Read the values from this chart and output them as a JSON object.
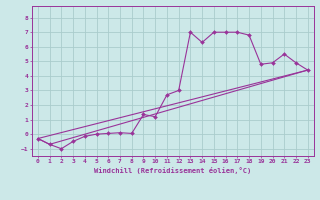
{
  "xlabel": "Windchill (Refroidissement éolien,°C)",
  "bg_color": "#cce8e8",
  "grid_color": "#aacccc",
  "line_color": "#993399",
  "xlim": [
    -0.5,
    23.5
  ],
  "ylim": [
    -1.5,
    8.8
  ],
  "xticks": [
    0,
    1,
    2,
    3,
    4,
    5,
    6,
    7,
    8,
    9,
    10,
    11,
    12,
    13,
    14,
    15,
    16,
    17,
    18,
    19,
    20,
    21,
    22,
    23
  ],
  "yticks": [
    -1,
    0,
    1,
    2,
    3,
    4,
    5,
    6,
    7,
    8
  ],
  "line1_x": [
    0,
    1,
    2,
    3,
    4,
    5,
    6,
    7,
    8,
    9,
    10,
    11,
    12,
    13,
    14,
    15,
    16,
    17,
    18,
    19,
    20,
    21,
    22,
    23
  ],
  "line1_y": [
    -0.3,
    -0.7,
    -1.0,
    -0.5,
    -0.15,
    0.0,
    0.05,
    0.1,
    0.05,
    1.35,
    1.2,
    2.7,
    3.0,
    7.0,
    6.3,
    7.0,
    7.0,
    7.0,
    6.8,
    4.8,
    4.9,
    5.5,
    4.9,
    4.4
  ],
  "line3_x": [
    0,
    23
  ],
  "line3_y": [
    -0.3,
    4.4
  ],
  "line4_x": [
    0,
    1,
    23
  ],
  "line4_y": [
    -0.3,
    -0.7,
    4.4
  ],
  "tick_fontsize": 4.5,
  "xlabel_fontsize": 5.0
}
